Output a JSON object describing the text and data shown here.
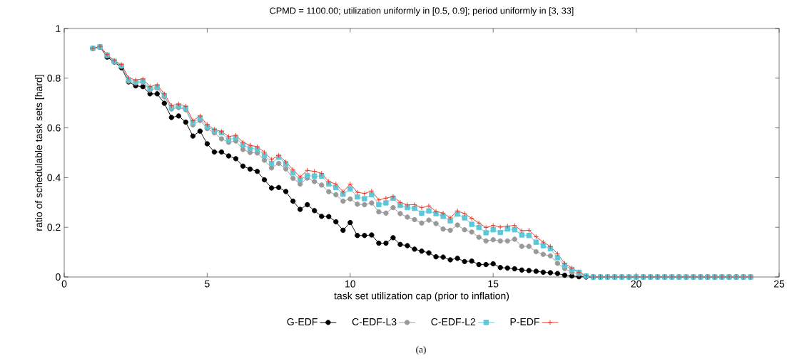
{
  "chart_data": {
    "type": "line",
    "title": "CPMD = 1100.00; utilization uniformly in [0.5, 0.9]; period uniformly in [3, 33]",
    "xlabel": "task set utilization cap (prior to inflation)",
    "ylabel": "ratio of schedulable task sets [hard]",
    "annotations": [
      "(a)"
    ],
    "x": [
      1,
      1.25,
      1.5,
      1.75,
      2,
      2.25,
      2.5,
      2.75,
      3,
      3.25,
      3.5,
      3.75,
      4,
      4.25,
      4.5,
      4.75,
      5,
      5.25,
      5.5,
      5.75,
      6,
      6.25,
      6.5,
      6.75,
      7,
      7.25,
      7.5,
      7.75,
      8,
      8.25,
      8.5,
      8.75,
      9,
      9.25,
      9.5,
      9.75,
      10,
      10.25,
      10.5,
      10.75,
      11,
      11.25,
      11.5,
      11.75,
      12,
      12.25,
      12.5,
      12.75,
      13,
      13.25,
      13.5,
      13.75,
      14,
      14.25,
      14.5,
      14.75,
      15,
      15.25,
      15.5,
      15.75,
      16,
      16.25,
      16.5,
      16.75,
      17,
      17.25,
      17.5,
      17.75,
      18,
      18.25,
      18.5,
      18.75,
      19,
      19.25,
      19.5,
      19.75,
      20,
      20.25,
      20.5,
      20.75,
      21,
      21.25,
      21.5,
      21.75,
      22,
      22.25,
      22.5,
      22.75,
      23,
      23.25,
      23.5,
      23.75,
      24
    ],
    "series": [
      {
        "name": "G-EDF",
        "color": "#000000",
        "marker": "circle",
        "values": [
          0.92,
          0.925,
          0.885,
          0.865,
          0.842,
          0.785,
          0.769,
          0.766,
          0.737,
          0.737,
          0.699,
          0.642,
          0.648,
          0.623,
          0.567,
          0.587,
          0.536,
          0.503,
          0.503,
          0.487,
          0.476,
          0.446,
          0.434,
          0.425,
          0.391,
          0.358,
          0.36,
          0.344,
          0.305,
          0.272,
          0.291,
          0.267,
          0.244,
          0.243,
          0.222,
          0.188,
          0.219,
          0.167,
          0.167,
          0.169,
          0.136,
          0.136,
          0.158,
          0.131,
          0.126,
          0.112,
          0.104,
          0.097,
          0.081,
          0.08,
          0.069,
          0.075,
          0.062,
          0.064,
          0.05,
          0.05,
          0.053,
          0.038,
          0.036,
          0.033,
          0.028,
          0.026,
          0.023,
          0.019,
          0.017,
          0.014,
          0.007,
          0.004,
          0.001,
          0,
          0,
          0,
          0,
          0,
          0,
          0,
          0,
          0,
          0,
          0,
          0,
          0,
          0,
          0,
          0,
          0,
          0,
          0,
          0,
          0,
          0,
          0,
          0
        ]
      },
      {
        "name": "C-EDF-L3",
        "color": "#999999",
        "marker": "circle",
        "values": [
          0.92,
          0.925,
          0.89,
          0.866,
          0.848,
          0.788,
          0.781,
          0.784,
          0.752,
          0.76,
          0.725,
          0.676,
          0.682,
          0.673,
          0.612,
          0.63,
          0.597,
          0.58,
          0.556,
          0.542,
          0.547,
          0.513,
          0.501,
          0.499,
          0.47,
          0.439,
          0.457,
          0.435,
          0.397,
          0.374,
          0.398,
          0.384,
          0.37,
          0.343,
          0.331,
          0.305,
          0.314,
          0.293,
          0.291,
          0.298,
          0.262,
          0.257,
          0.279,
          0.255,
          0.241,
          0.231,
          0.217,
          0.229,
          0.215,
          0.193,
          0.188,
          0.209,
          0.19,
          0.181,
          0.16,
          0.145,
          0.15,
          0.145,
          0.145,
          0.152,
          0.123,
          0.123,
          0.102,
          0.091,
          0.085,
          0.055,
          0.034,
          0.019,
          0.012,
          0.002,
          0,
          0,
          0,
          0,
          0,
          0,
          0,
          0,
          0,
          0,
          0,
          0,
          0,
          0,
          0,
          0,
          0,
          0,
          0,
          0,
          0,
          0,
          0
        ]
      },
      {
        "name": "C-EDF-L2",
        "color": "#5bc8d8",
        "marker": "square",
        "values": [
          0.92,
          0.926,
          0.893,
          0.868,
          0.85,
          0.793,
          0.786,
          0.789,
          0.758,
          0.765,
          0.73,
          0.682,
          0.688,
          0.679,
          0.62,
          0.64,
          0.605,
          0.589,
          0.58,
          0.551,
          0.561,
          0.532,
          0.517,
          0.515,
          0.489,
          0.457,
          0.482,
          0.455,
          0.419,
          0.391,
          0.408,
          0.406,
          0.406,
          0.374,
          0.36,
          0.333,
          0.355,
          0.322,
          0.315,
          0.331,
          0.291,
          0.298,
          0.317,
          0.288,
          0.279,
          0.276,
          0.257,
          0.266,
          0.255,
          0.244,
          0.226,
          0.253,
          0.238,
          0.212,
          0.199,
          0.178,
          0.19,
          0.179,
          0.193,
          0.19,
          0.169,
          0.167,
          0.14,
          0.126,
          0.114,
          0.078,
          0.047,
          0.03,
          0.019,
          0.004,
          0,
          0,
          0,
          0,
          0,
          0,
          0,
          0,
          0,
          0,
          0,
          0,
          0,
          0,
          0,
          0,
          0,
          0,
          0,
          0,
          0,
          0,
          0
        ]
      },
      {
        "name": "P-EDF",
        "color": "#ee3322",
        "marker": "cross",
        "values": [
          0.92,
          0.928,
          0.895,
          0.871,
          0.855,
          0.801,
          0.793,
          0.797,
          0.766,
          0.773,
          0.737,
          0.69,
          0.696,
          0.687,
          0.629,
          0.648,
          0.613,
          0.594,
          0.585,
          0.565,
          0.57,
          0.542,
          0.53,
          0.524,
          0.502,
          0.473,
          0.489,
          0.463,
          0.432,
          0.403,
          0.429,
          0.425,
          0.417,
          0.384,
          0.374,
          0.343,
          0.374,
          0.341,
          0.336,
          0.346,
          0.31,
          0.317,
          0.324,
          0.3,
          0.29,
          0.291,
          0.279,
          0.286,
          0.264,
          0.257,
          0.238,
          0.266,
          0.255,
          0.236,
          0.217,
          0.199,
          0.207,
          0.201,
          0.205,
          0.207,
          0.186,
          0.188,
          0.162,
          0.14,
          0.123,
          0.093,
          0.055,
          0.036,
          0.019,
          0.005,
          0,
          0,
          0,
          0,
          0,
          0,
          0,
          0,
          0,
          0,
          0,
          0,
          0,
          0,
          0,
          0,
          0,
          0,
          0,
          0,
          0,
          0,
          0
        ]
      }
    ],
    "xlim": [
      0,
      25
    ],
    "xticks": [
      0,
      5,
      10,
      15,
      20,
      25
    ],
    "ylim": [
      0,
      1
    ],
    "yticks": [
      0,
      0.2,
      0.4,
      0.6,
      0.8,
      1
    ],
    "legend": "bottom"
  }
}
